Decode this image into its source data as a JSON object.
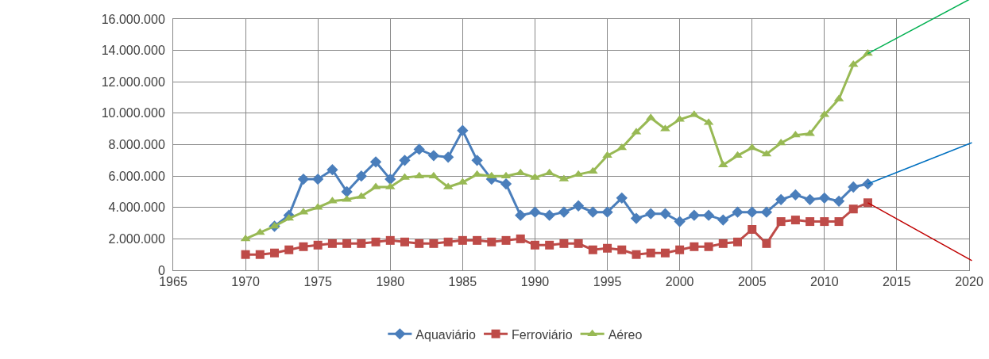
{
  "chart_data": {
    "type": "line",
    "x": [
      1970,
      1971,
      1972,
      1973,
      1974,
      1975,
      1976,
      1977,
      1978,
      1979,
      1980,
      1981,
      1982,
      1983,
      1984,
      1985,
      1986,
      1987,
      1988,
      1989,
      1990,
      1991,
      1992,
      1993,
      1994,
      1995,
      1996,
      1997,
      1998,
      1999,
      2000,
      2001,
      2002,
      2003,
      2004,
      2005,
      2006,
      2007,
      2008,
      2009,
      2010,
      2011,
      2012,
      2013
    ],
    "series": [
      {
        "name": "Aquaviário",
        "color": "#4a7ebb",
        "marker": "diamond",
        "values": [
          null,
          null,
          2800000,
          3500000,
          5800000,
          5800000,
          6400000,
          5000000,
          6000000,
          6900000,
          5800000,
          7000000,
          7700000,
          7300000,
          7200000,
          8900000,
          7000000,
          5800000,
          5500000,
          3500000,
          3700000,
          3500000,
          3700000,
          4100000,
          3700000,
          3700000,
          4600000,
          3300000,
          3600000,
          3600000,
          3100000,
          3500000,
          3500000,
          3200000,
          3700000,
          3700000,
          3700000,
          4500000,
          4800000,
          4500000,
          4600000,
          4400000,
          5300000,
          5500000
        ]
      },
      {
        "name": "Ferroviário",
        "color": "#be4b48",
        "marker": "square",
        "values": [
          1000000,
          1000000,
          1100000,
          1300000,
          1500000,
          1600000,
          1700000,
          1700000,
          1700000,
          1800000,
          1900000,
          1800000,
          1700000,
          1700000,
          1800000,
          1900000,
          1900000,
          1800000,
          1900000,
          2000000,
          1600000,
          1600000,
          1700000,
          1700000,
          1300000,
          1400000,
          1300000,
          1000000,
          1100000,
          1100000,
          1300000,
          1500000,
          1500000,
          1700000,
          1800000,
          2600000,
          1700000,
          3100000,
          3200000,
          3100000,
          3100000,
          3100000,
          3900000,
          4300000
        ]
      },
      {
        "name": "Aéreo",
        "color": "#98b954",
        "marker": "triangle",
        "values": [
          2000000,
          2400000,
          2800000,
          3300000,
          3700000,
          4000000,
          4400000,
          4500000,
          4700000,
          5300000,
          5300000,
          5900000,
          6000000,
          6000000,
          5300000,
          5600000,
          6100000,
          6000000,
          6000000,
          6200000,
          5900000,
          6200000,
          5800000,
          6100000,
          6300000,
          7300000,
          7800000,
          8800000,
          9700000,
          9000000,
          9600000,
          9900000,
          9400000,
          6700000,
          7300000,
          7800000,
          7400000,
          8100000,
          8600000,
          8700000,
          9900000,
          10900000,
          13100000,
          13800000
        ]
      }
    ],
    "xlim": [
      1965,
      2020
    ],
    "xticks": [
      1965,
      1970,
      1975,
      1980,
      1985,
      1990,
      1995,
      2000,
      2005,
      2010,
      2015,
      2020
    ],
    "ylim": [
      0,
      16000000
    ],
    "yticks": [
      0,
      {
        "value": 2000000,
        "label": "2.000.000"
      },
      {
        "value": 4000000,
        "label": "4.000.000"
      },
      {
        "value": 6000000,
        "label": "6.000.000"
      },
      {
        "value": 8000000,
        "label": "8.000.000"
      },
      {
        "value": 10000000,
        "label": "10.000.000"
      },
      {
        "value": 12000000,
        "label": "12.000.000"
      },
      {
        "value": 14000000,
        "label": "14.000.000"
      },
      {
        "value": 16000000,
        "label": "16.000.000"
      }
    ],
    "grid": true,
    "legend": "bottom",
    "line_style": "solid"
  }
}
